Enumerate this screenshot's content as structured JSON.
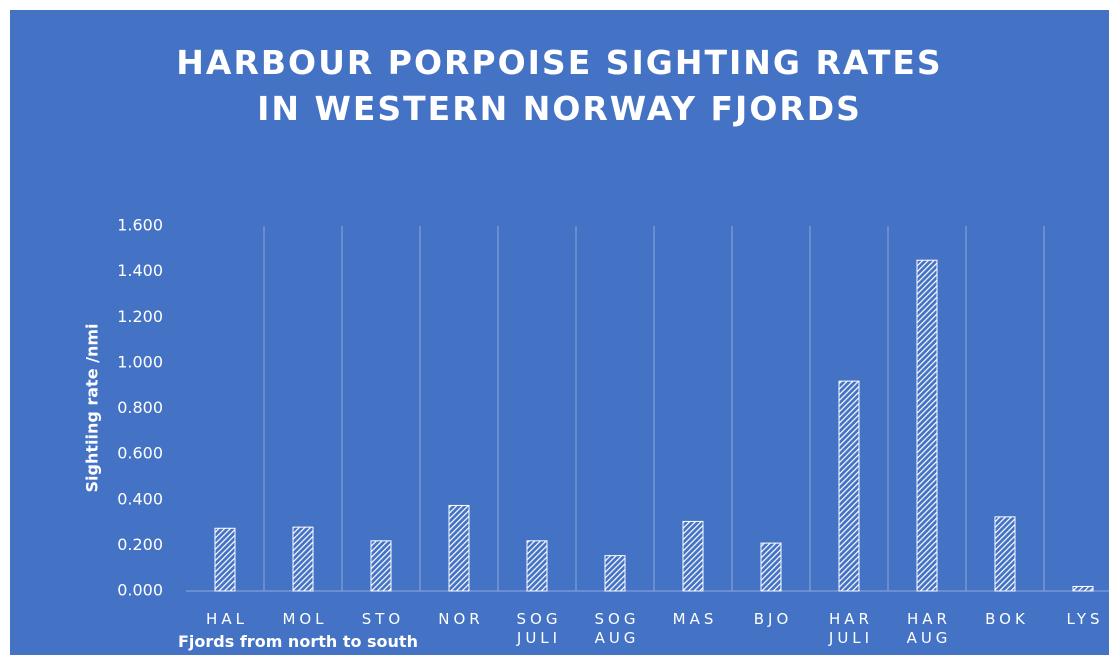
{
  "chart_data": {
    "type": "bar",
    "title": "HARBOUR PORPOISE SIGHTING RATES\nIN WESTERN NORWAY FJORDS",
    "x_label": "Fjords from north to south",
    "y_label": "Sightiing rate /nmi",
    "categories": [
      "HAL",
      "MOL",
      "STO",
      "NOR",
      "SOG\nJULI",
      "SOG\nAUG",
      "MAS",
      "BJO",
      "HAR\nJULI",
      "HAR\nAUG",
      "BOK",
      "LYS"
    ],
    "values": [
      0.275,
      0.28,
      0.22,
      0.375,
      0.22,
      0.155,
      0.305,
      0.21,
      0.92,
      1.45,
      0.325,
      0.02
    ],
    "color": "#ffffff",
    "ylim": [
      0,
      1.6
    ],
    "yticks": [
      {
        "value": 0,
        "label": "0.000"
      },
      {
        "value": 0.2,
        "label": "0.200"
      },
      {
        "value": 0.4,
        "label": "0.400"
      },
      {
        "value": 0.6,
        "label": "0.600"
      },
      {
        "value": 0.8,
        "label": "0.800"
      },
      {
        "value": 1.0,
        "label": "1.000"
      },
      {
        "value": 1.2,
        "label": "1.200"
      },
      {
        "value": 1.4,
        "label": "1.400"
      },
      {
        "value": 1.6,
        "label": "1.600"
      }
    ],
    "grid": false
  }
}
